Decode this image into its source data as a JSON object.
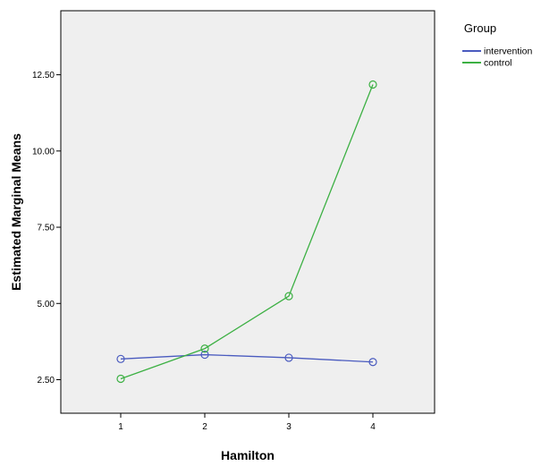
{
  "chart_data": {
    "type": "line",
    "xlabel": "Hamilton",
    "ylabel": "Estimated Marginal Means",
    "categories": [
      "1",
      "2",
      "3",
      "4"
    ],
    "x_tick_labels": [
      "1",
      "2",
      "3",
      "4"
    ],
    "y_ticks": [
      2.5,
      5.0,
      7.5,
      10.0,
      12.5
    ],
    "y_tick_labels": [
      "2.50",
      "5.00",
      "7.50",
      "10.00",
      "12.50"
    ],
    "ylim": [
      1.4,
      14.6
    ],
    "grid": false,
    "marker": "circle",
    "legend": {
      "title": "Group",
      "placement": "outside-top-right"
    },
    "series": [
      {
        "name": "intervention",
        "color": "#4a5bbf",
        "values": [
          3.18,
          3.32,
          3.22,
          3.08
        ]
      },
      {
        "name": "control",
        "color": "#3cb043",
        "values": [
          2.53,
          3.52,
          5.24,
          12.18
        ]
      }
    ]
  },
  "colors": {
    "plot_background": "#efefef",
    "axis": "#000000"
  }
}
